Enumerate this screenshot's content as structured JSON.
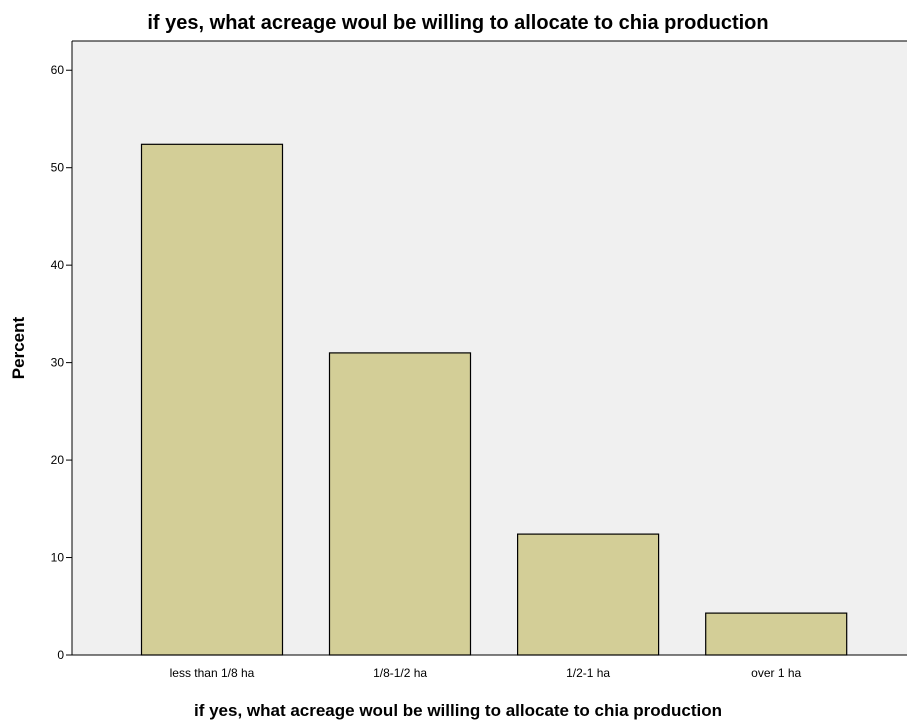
{
  "chart_data": {
    "type": "bar",
    "title": "if yes, what acreage woul be willing to allocate to chia production",
    "xlabel": "if yes, what acreage woul be willing to allocate to chia production",
    "ylabel": "Percent",
    "categories": [
      "less than 1/8 ha",
      "1/8-1/2 ha",
      "1/2-1 ha",
      "over 1 ha"
    ],
    "values": [
      52.4,
      31.0,
      12.4,
      4.3
    ],
    "ylim": [
      0,
      63
    ],
    "yticks": [
      0,
      10,
      20,
      30,
      40,
      50,
      60
    ],
    "grid": false,
    "colors": {
      "plot_background": "#f0f0f0",
      "bar_fill": "#d3ce97",
      "bar_stroke": "#000000"
    }
  }
}
